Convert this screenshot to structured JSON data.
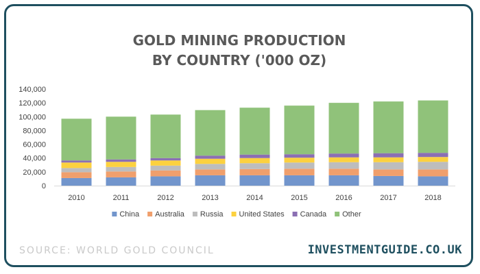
{
  "chart_data": {
    "type": "bar",
    "stacked": true,
    "title": [
      "GOLD MINING PRODUCTION",
      "BY COUNTRY ('000 OZ)"
    ],
    "categories": [
      "2010",
      "2011",
      "2012",
      "2013",
      "2014",
      "2015",
      "2016",
      "2017",
      "2018"
    ],
    "ylim": [
      0,
      140000
    ],
    "yticks": [
      "0",
      "20,000",
      "40,000",
      "60,000",
      "80,000",
      "100,000",
      "120,000",
      "140,000"
    ],
    "grid": false,
    "legend_position": "bottom",
    "series": [
      {
        "name": "China",
        "color": "#7295cc",
        "values": [
          11000,
          12000,
          13500,
          15000,
          15000,
          15000,
          15000,
          14000,
          13500
        ]
      },
      {
        "name": "Australia",
        "color": "#f09f6c",
        "values": [
          8500,
          8500,
          8500,
          8500,
          9000,
          9500,
          9500,
          9500,
          10000
        ]
      },
      {
        "name": "Russia",
        "color": "#bdbdbd",
        "values": [
          6000,
          6500,
          7000,
          8000,
          8500,
          9000,
          9500,
          10500,
          11000
        ]
      },
      {
        "name": "United States",
        "color": "#fcd13f",
        "values": [
          8000,
          7500,
          7500,
          7500,
          7500,
          7000,
          7000,
          7000,
          7000
        ]
      },
      {
        "name": "Canada",
        "color": "#8b6fb3",
        "values": [
          3000,
          3500,
          3500,
          4500,
          5000,
          5000,
          5500,
          6000,
          6000
        ]
      },
      {
        "name": "Other",
        "color": "#90c27a",
        "values": [
          60500,
          62000,
          63000,
          66000,
          68000,
          70500,
          73500,
          75000,
          76000
        ]
      }
    ]
  },
  "footer": {
    "source": "SOURCE: WORLD GOLD COUNCIL",
    "brand": "INVESTMENTGUIDE.CO.UK"
  }
}
